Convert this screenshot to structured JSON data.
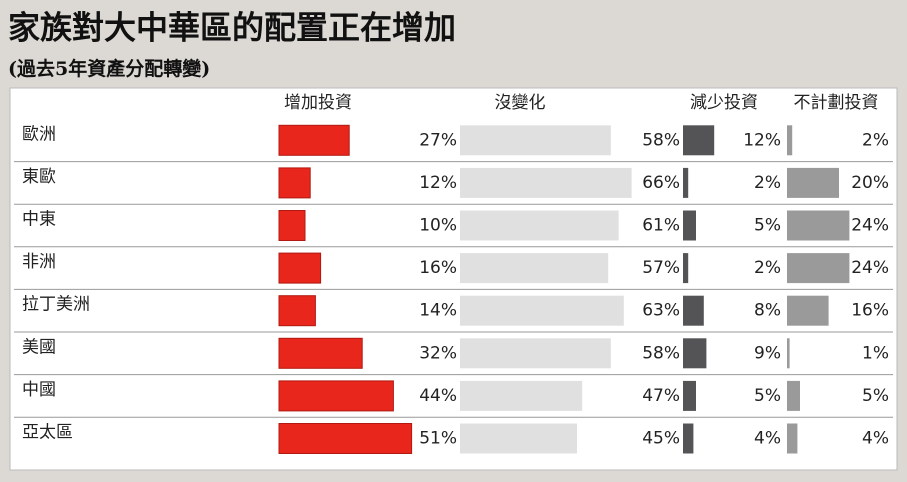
{
  "chart_data": {
    "type": "bar",
    "title": "家族對大中華區的配置正在增加",
    "subtitle": "(過去5年資產分配轉變)",
    "categories": [
      "歐洲",
      "東歐",
      "中東",
      "非洲",
      "拉丁美洲",
      "美國",
      "中國",
      "亞太區"
    ],
    "series": [
      {
        "name": "增加投資",
        "color": "#e8261c",
        "values": [
          27,
          12,
          10,
          16,
          14,
          32,
          44,
          51
        ],
        "value_labels": [
          "27%",
          "12%",
          "10%",
          "16%",
          "14%",
          "32%",
          "44%",
          "51%"
        ]
      },
      {
        "name": "沒變化",
        "color": "#e0e0e0",
        "values": [
          58,
          66,
          61,
          57,
          63,
          58,
          47,
          45
        ],
        "value_labels": [
          "58%",
          "66%",
          "61%",
          "57%",
          "63%",
          "58%",
          "47%",
          "45%"
        ]
      },
      {
        "name": "減少投資",
        "color": "#545457",
        "values": [
          12,
          2,
          5,
          2,
          8,
          9,
          5,
          4
        ],
        "value_labels": [
          "12%",
          "2%",
          "5%",
          "2%",
          "8%",
          "9%",
          "5%",
          "4%"
        ]
      },
      {
        "name": "不計劃投資",
        "color": "#9a9a9a",
        "values": [
          2,
          20,
          24,
          24,
          16,
          1,
          5,
          4
        ],
        "value_labels": [
          "2%",
          "20%",
          "24%",
          "24%",
          "16%",
          "1%",
          "5%",
          "4%"
        ]
      }
    ]
  }
}
